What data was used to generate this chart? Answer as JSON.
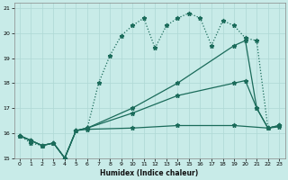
{
  "xlabel": "Humidex (Indice chaleur)",
  "bg_color": "#c8ebe8",
  "grid_color": "#aed8d4",
  "line_color": "#1a6b5a",
  "xlim": [
    -0.5,
    23.5
  ],
  "ylim": [
    15,
    21.2
  ],
  "yticks": [
    15,
    16,
    17,
    18,
    19,
    20,
    21
  ],
  "xticks": [
    0,
    1,
    2,
    3,
    4,
    5,
    6,
    7,
    8,
    9,
    10,
    11,
    12,
    13,
    14,
    15,
    16,
    17,
    18,
    19,
    20,
    21,
    22,
    23
  ],
  "s1_x": [
    0,
    1,
    2,
    3,
    4,
    5,
    6,
    7,
    8,
    9,
    10,
    11,
    12,
    13,
    14,
    15,
    16,
    17,
    18,
    19,
    20,
    21,
    22,
    23
  ],
  "s1_y": [
    15.9,
    15.6,
    15.5,
    15.6,
    15.0,
    16.1,
    16.2,
    18.0,
    19.1,
    19.9,
    20.3,
    20.6,
    19.4,
    20.3,
    20.6,
    20.8,
    20.6,
    19.5,
    20.5,
    20.3,
    19.8,
    19.7,
    16.2,
    16.3
  ],
  "s2_x": [
    0,
    1,
    2,
    3,
    4,
    5,
    6,
    10,
    14,
    19,
    20,
    21,
    22,
    23
  ],
  "s2_y": [
    15.9,
    15.7,
    15.5,
    15.6,
    15.0,
    16.1,
    16.2,
    17.0,
    18.0,
    19.5,
    19.7,
    17.0,
    16.2,
    16.3
  ],
  "s3_x": [
    0,
    1,
    2,
    3,
    4,
    5,
    6,
    10,
    14,
    19,
    20,
    21,
    22,
    23
  ],
  "s3_y": [
    15.9,
    15.7,
    15.5,
    15.6,
    15.0,
    16.1,
    16.2,
    16.8,
    17.5,
    18.0,
    18.1,
    17.0,
    16.2,
    16.3
  ],
  "s4_x": [
    0,
    1,
    2,
    3,
    4,
    5,
    6,
    10,
    14,
    19,
    22,
    23
  ],
  "s4_y": [
    15.9,
    15.7,
    15.5,
    15.6,
    15.0,
    16.1,
    16.15,
    16.2,
    16.3,
    16.3,
    16.2,
    16.25
  ]
}
